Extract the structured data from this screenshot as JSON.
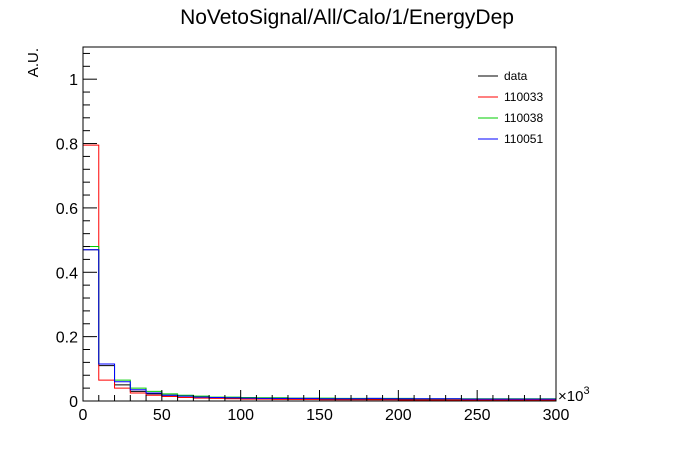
{
  "chart_data": {
    "type": "histogram",
    "title": "NoVetoSignal/All/Calo/1/EnergyDep",
    "ylabel": "A.U.",
    "xlabel": "",
    "x_exponent_label": "×10",
    "x_exponent_power": "3",
    "xlim": [
      0,
      300
    ],
    "ylim": [
      0,
      1.1
    ],
    "x_ticks": [
      0,
      50,
      100,
      150,
      200,
      250,
      300
    ],
    "x_tick_labels": [
      "0",
      "50",
      "100",
      "150",
      "200",
      "250",
      "300"
    ],
    "y_ticks": [
      0,
      0.2,
      0.4,
      0.6,
      0.8,
      1
    ],
    "y_tick_labels": [
      "0",
      "0.2",
      "0.4",
      "0.6",
      "0.8",
      "1"
    ],
    "bin_edges": [
      0,
      10,
      20,
      30,
      40,
      50,
      60,
      70,
      80,
      90,
      100,
      110,
      120,
      130,
      140,
      150,
      160,
      170,
      180,
      190,
      200,
      210,
      220,
      230,
      240,
      250,
      260,
      270,
      280,
      290,
      300
    ],
    "legend_position": "top-right",
    "series": [
      {
        "name": "data",
        "color": "#000000",
        "values": [
          0.47,
          0.11,
          0.05,
          0.03,
          0.022,
          0.018,
          0.015,
          0.012,
          0.01,
          0.009,
          0.008,
          0.007,
          0.007,
          0.006,
          0.006,
          0.006,
          0.005,
          0.005,
          0.005,
          0.006,
          0.005,
          0.005,
          0.005,
          0.004,
          0.004,
          0.004,
          0.004,
          0.004,
          0.004,
          0.004
        ]
      },
      {
        "name": "110033",
        "color": "#ff0000",
        "values": [
          0.795,
          0.065,
          0.04,
          0.025,
          0.018,
          0.014,
          0.011,
          0.009,
          0.008,
          0.007,
          0.006,
          0.006,
          0.005,
          0.005,
          0.005,
          0.004,
          0.004,
          0.004,
          0.004,
          0.004,
          0.003,
          0.003,
          0.003,
          0.003,
          0.003,
          0.003,
          0.003,
          0.003,
          0.003,
          0.003
        ]
      },
      {
        "name": "110038",
        "color": "#00cc00",
        "values": [
          0.48,
          0.115,
          0.065,
          0.04,
          0.03,
          0.022,
          0.018,
          0.015,
          0.012,
          0.012,
          0.011,
          0.01,
          0.01,
          0.009,
          0.009,
          0.009,
          0.008,
          0.008,
          0.008,
          0.008,
          0.008,
          0.007,
          0.007,
          0.007,
          0.007,
          0.007,
          0.007,
          0.007,
          0.007,
          0.007
        ]
      },
      {
        "name": "110051",
        "color": "#0000ff",
        "values": [
          0.47,
          0.115,
          0.06,
          0.035,
          0.025,
          0.018,
          0.015,
          0.012,
          0.011,
          0.01,
          0.009,
          0.008,
          0.008,
          0.008,
          0.008,
          0.007,
          0.007,
          0.007,
          0.008,
          0.007,
          0.007,
          0.007,
          0.007,
          0.007,
          0.006,
          0.006,
          0.006,
          0.006,
          0.006,
          0.006
        ]
      }
    ]
  }
}
